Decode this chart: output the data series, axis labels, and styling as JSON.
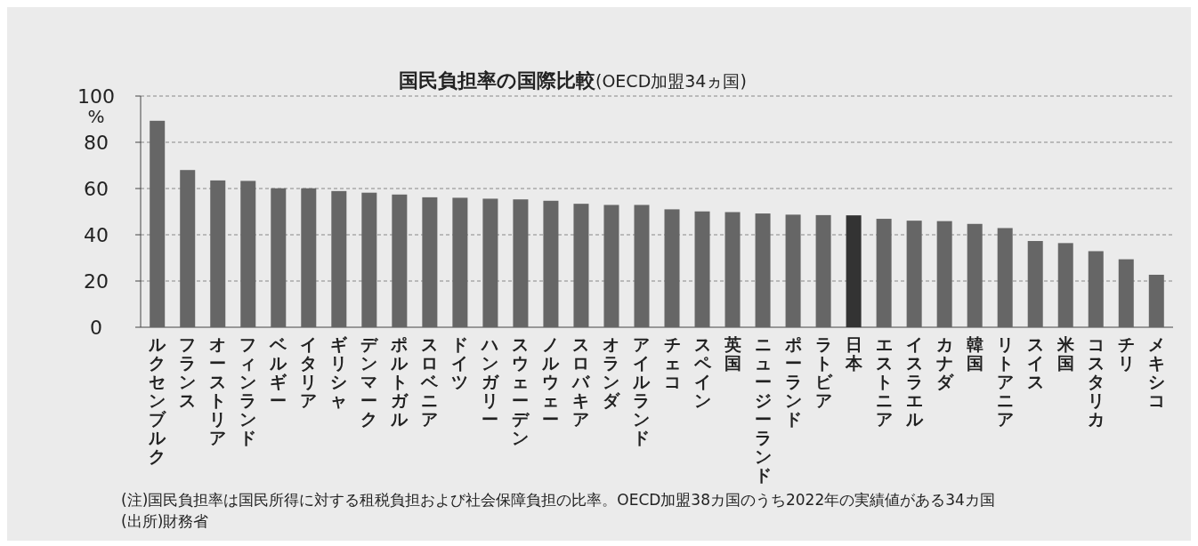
{
  "chart_data": {
    "type": "bar",
    "title": "国民負担率の国際比較",
    "subtitle": "(OECD加盟34ヵ国)",
    "ylabel": "%",
    "categories": [
      "ルクセンブルク",
      "フランス",
      "オーストリア",
      "フィンランド",
      "ベルギー",
      "イタリア",
      "ギリシャ",
      "デンマーク",
      "ポルトガル",
      "スロベニア",
      "ドイツ",
      "ハンガリー",
      "スウェーデン",
      "ノルウェー",
      "スロバキア",
      "オランダ",
      "アイルランド",
      "チェコ",
      "スペイン",
      "英国",
      "ニュージーランド",
      "ポーランド",
      "ラトビア",
      "日本",
      "エストニア",
      "イスラエル",
      "カナダ",
      "韓国",
      "リトアニア",
      "スイス",
      "米国",
      "コスタリカ",
      "チリ",
      "メキシコ"
    ],
    "values": [
      89.3,
      68.0,
      63.5,
      63.3,
      60.1,
      60.1,
      58.9,
      58.2,
      57.4,
      56.2,
      56.0,
      55.6,
      55.3,
      54.7,
      53.4,
      52.9,
      52.9,
      51.0,
      50.1,
      49.8,
      49.2,
      48.7,
      48.5,
      48.4,
      46.9,
      46.1,
      45.9,
      44.7,
      42.9,
      37.3,
      36.4,
      32.9,
      29.4,
      22.7
    ],
    "colors": [
      "#666666",
      "#666666",
      "#666666",
      "#666666",
      "#666666",
      "#666666",
      "#666666",
      "#666666",
      "#666666",
      "#666666",
      "#666666",
      "#666666",
      "#666666",
      "#666666",
      "#666666",
      "#666666",
      "#666666",
      "#666666",
      "#666666",
      "#666666",
      "#666666",
      "#666666",
      "#666666",
      "#333333",
      "#666666",
      "#666666",
      "#666666",
      "#666666",
      "#666666",
      "#666666",
      "#666666",
      "#666666",
      "#666666",
      "#666666"
    ],
    "ylim": [
      0,
      100
    ],
    "yticks": [
      0,
      20,
      40,
      60,
      80,
      100
    ],
    "grid": "y",
    "annotations": [
      "(注)国民負担率は国民所得に対する租税負担および社会保障負担の比率。OECD加盟38カ国のうち2022年の実績値がある34カ国",
      "(出所)財務省"
    ]
  }
}
